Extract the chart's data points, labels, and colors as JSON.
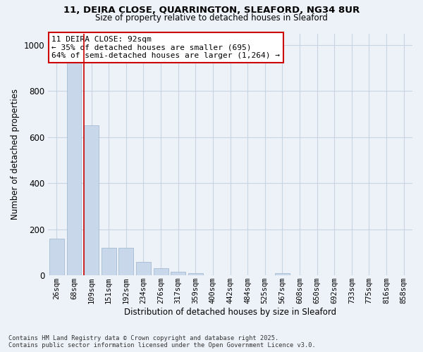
{
  "title_line1": "11, DEIRA CLOSE, QUARRINGTON, SLEAFORD, NG34 8UR",
  "title_line2": "Size of property relative to detached houses in Sleaford",
  "xlabel": "Distribution of detached houses by size in Sleaford",
  "ylabel": "Number of detached properties",
  "bar_labels": [
    "26sqm",
    "68sqm",
    "109sqm",
    "151sqm",
    "192sqm",
    "234sqm",
    "276sqm",
    "317sqm",
    "359sqm",
    "400sqm",
    "442sqm",
    "484sqm",
    "525sqm",
    "567sqm",
    "608sqm",
    "650sqm",
    "692sqm",
    "733sqm",
    "775sqm",
    "816sqm",
    "858sqm"
  ],
  "bar_values": [
    160,
    940,
    650,
    120,
    120,
    60,
    30,
    15,
    10,
    0,
    0,
    0,
    0,
    10,
    0,
    0,
    0,
    0,
    0,
    0,
    0
  ],
  "bar_color": "#c8d8ea",
  "bar_edge_color": "#9ab4cc",
  "grid_color": "#c8d4e4",
  "background_color": "#edf2f8",
  "vline_x_index": 1.55,
  "vline_color": "#cc0000",
  "annotation_text": "11 DEIRA CLOSE: 92sqm\n← 35% of detached houses are smaller (695)\n64% of semi-detached houses are larger (1,264) →",
  "annotation_box_color": "#ffffff",
  "annotation_box_edge": "#cc0000",
  "ylim": [
    0,
    1050
  ],
  "yticks": [
    0,
    200,
    400,
    600,
    800,
    1000
  ],
  "footer_line1": "Contains HM Land Registry data © Crown copyright and database right 2025.",
  "footer_line2": "Contains public sector information licensed under the Open Government Licence v3.0."
}
